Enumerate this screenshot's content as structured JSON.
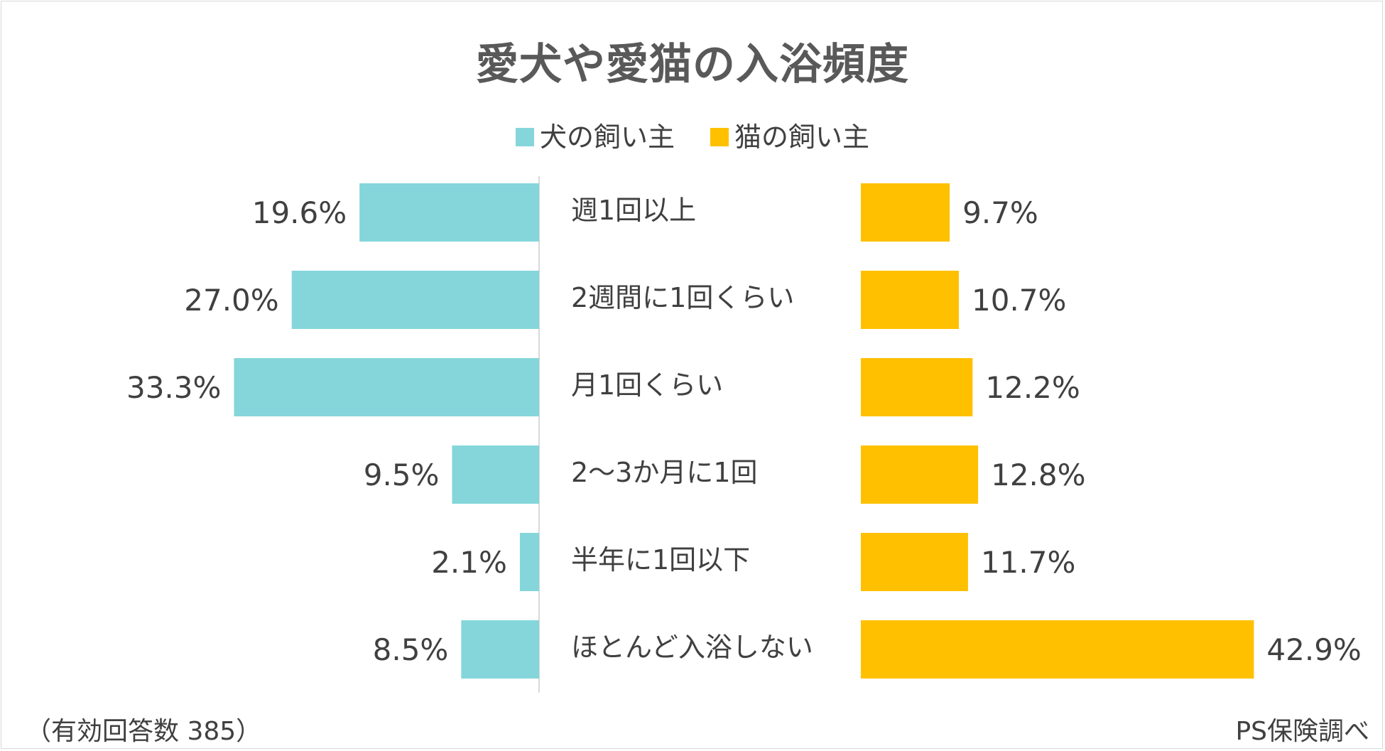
{
  "chart_data": {
    "type": "bar",
    "title": "愛犬や愛猫の入浴頻度",
    "categories": [
      "週1回以上",
      "2週間に1回くらい",
      "月1回くらい",
      "2～3か月に1回",
      "半年に1回以下",
      "ほとんど入浴しない"
    ],
    "series": [
      {
        "name": "犬の飼い主",
        "values": [
          19.6,
          27.0,
          33.3,
          9.5,
          2.1,
          8.5
        ],
        "labels": [
          "19.6%",
          "27.0%",
          "33.3%",
          "9.5%",
          "2.1%",
          "8.5%"
        ],
        "color": "#84d6da"
      },
      {
        "name": "猫の飼い主",
        "values": [
          9.7,
          10.7,
          12.2,
          12.8,
          11.7,
          42.9
        ],
        "labels": [
          "9.7%",
          "10.7%",
          "12.2%",
          "12.8%",
          "11.7%",
          "42.9%"
        ],
        "color": "#ffc000"
      }
    ],
    "legend_position": "top",
    "grid": false
  },
  "footnote": "（有効回答数 385）",
  "source": "PS保険調べ"
}
